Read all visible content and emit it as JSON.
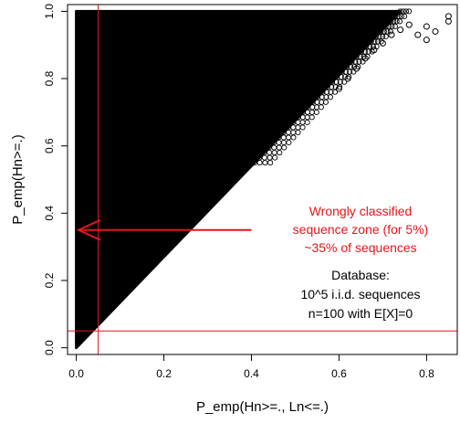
{
  "chart_data": {
    "type": "scatter",
    "title": "",
    "xlabel": "P_emp(Hn>=., Ln<=.)",
    "ylabel": "P_emp(Hn>=.)",
    "xlim": [
      -0.02,
      0.87
    ],
    "ylim": [
      -0.02,
      1.02
    ],
    "x_ticks": [
      0.0,
      0.2,
      0.4,
      0.6,
      0.8
    ],
    "x_tick_labels": [
      "0.0",
      "0.2",
      "0.4",
      "0.6",
      "0.8"
    ],
    "y_ticks": [
      0.0,
      0.2,
      0.4,
      0.6,
      0.8,
      1.0
    ],
    "y_tick_labels": [
      "0.0",
      "0.2",
      "0.4",
      "0.6",
      "0.8",
      "1.0"
    ],
    "grid": false,
    "legend": "none",
    "region": {
      "description_shape": "points fill the triangle y >= x, bounded by x = 0 and y = 1",
      "dense_boundary": [
        [
          0.0,
          0.0
        ],
        [
          0.0,
          1.0
        ],
        [
          0.74,
          1.0
        ],
        [
          0.0,
          0.0
        ]
      ],
      "sparse_edge_points": [
        [
          0.85,
          0.985
        ],
        [
          0.85,
          0.97
        ],
        [
          0.8,
          0.955
        ],
        [
          0.82,
          0.94
        ],
        [
          0.78,
          0.93
        ],
        [
          0.8,
          0.915
        ],
        [
          0.76,
          0.96
        ],
        [
          0.74,
          0.945
        ],
        [
          0.72,
          0.93
        ],
        [
          0.7,
          0.905
        ],
        [
          0.68,
          0.885
        ],
        [
          0.66,
          0.86
        ],
        [
          0.64,
          0.83
        ],
        [
          0.62,
          0.8
        ],
        [
          0.6,
          0.77
        ]
      ]
    },
    "reference_lines": {
      "vertical_x": 0.05,
      "horizontal_y": 0.05,
      "color": "#e8141b"
    },
    "annotations": {
      "red_text_lines": [
        "Wrongly classified",
        "sequence zone (for 5%)",
        "~35% of sequences"
      ],
      "arrow": {
        "from": [
          0.4,
          0.35
        ],
        "to": [
          0.005,
          0.35
        ]
      },
      "black_text_lines": [
        "Database:",
        "10^5 i.i.d. sequences",
        "n=100 with E[X]=0"
      ]
    },
    "colors": {
      "points": "#000000",
      "highlight": "#e8141b",
      "axes": "#000000"
    }
  }
}
